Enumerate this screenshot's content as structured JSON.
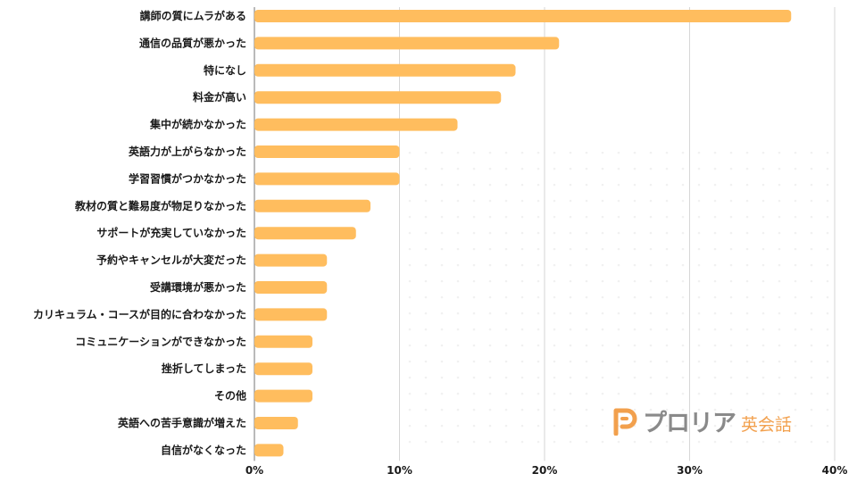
{
  "chart_data": {
    "type": "bar",
    "orientation": "horizontal",
    "categories": [
      "講師の質にムラがある",
      "通信の品質が悪かった",
      "特になし",
      "料金が高い",
      "集中が続かなかった",
      "英語力が上がらなかった",
      "学習習慣がつかなかった",
      "教材の質と難易度が物足りなかった",
      "サポートが充実していなかった",
      "予約やキャンセルが大変だった",
      "受講環境が悪かった",
      "カリキュラム・コースが目的に合わなかった",
      "コミュニケーションができなかった",
      "挫折してしまった",
      "その他",
      "英語への苦手意識が増えた",
      "自信がなくなった"
    ],
    "values": [
      37,
      21,
      18,
      17,
      14,
      10,
      10,
      8,
      7,
      5,
      5,
      5,
      4,
      4,
      4,
      3,
      2
    ],
    "xlim": [
      0,
      40
    ],
    "ticks": [
      "0%",
      "10%",
      "20%",
      "30%",
      "40%"
    ],
    "bar_color": "#ffbd5e",
    "grid": true
  },
  "logo": {
    "name": "プロリア",
    "sub": "英会話",
    "icon": "proria-p-logo-icon",
    "color": "#f2a04d"
  }
}
